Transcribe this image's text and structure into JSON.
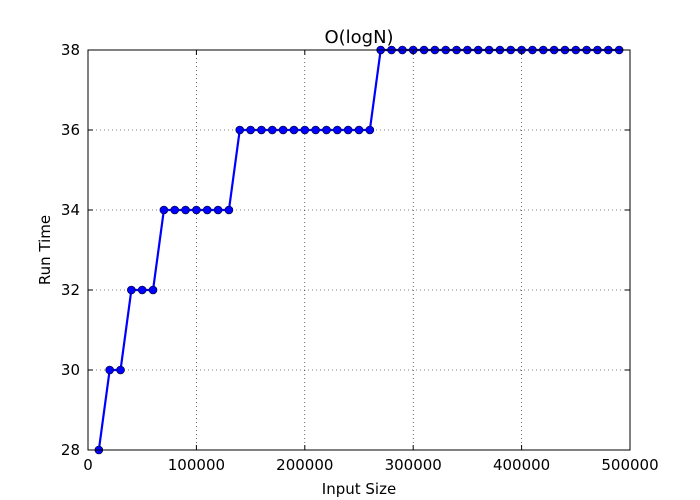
{
  "chart_data": {
    "type": "line",
    "title": "O(logN)",
    "xlabel": "Input Size",
    "ylabel": "Run Time",
    "xlim": [
      0,
      500000
    ],
    "ylim": [
      28,
      38
    ],
    "xticks": [
      0,
      100000,
      200000,
      300000,
      400000,
      500000
    ],
    "xtick_labels": [
      "0",
      "100000",
      "200000",
      "300000",
      "400000",
      "500000"
    ],
    "yticks": [
      28,
      30,
      32,
      34,
      36,
      38
    ],
    "ytick_labels": [
      "28",
      "30",
      "32",
      "34",
      "36",
      "38"
    ],
    "grid": true,
    "marker": "circle",
    "color": "#0000ff",
    "series": [
      {
        "x": [
          10000,
          20000,
          30000,
          40000,
          50000,
          60000,
          70000,
          80000,
          90000,
          100000,
          110000,
          120000,
          130000,
          140000,
          150000,
          160000,
          170000,
          180000,
          190000,
          200000,
          210000,
          220000,
          230000,
          240000,
          250000,
          260000,
          270000,
          280000,
          290000,
          300000,
          310000,
          320000,
          330000,
          340000,
          350000,
          360000,
          370000,
          380000,
          390000,
          400000,
          410000,
          420000,
          430000,
          440000,
          450000,
          460000,
          470000,
          480000,
          490000
        ],
        "y": [
          28,
          30,
          30,
          32,
          32,
          32,
          34,
          34,
          34,
          34,
          34,
          34,
          34,
          36,
          36,
          36,
          36,
          36,
          36,
          36,
          36,
          36,
          36,
          36,
          36,
          36,
          38,
          38,
          38,
          38,
          38,
          38,
          38,
          38,
          38,
          38,
          38,
          38,
          38,
          38,
          38,
          38,
          38,
          38,
          38,
          38,
          38,
          38,
          38
        ]
      }
    ]
  }
}
